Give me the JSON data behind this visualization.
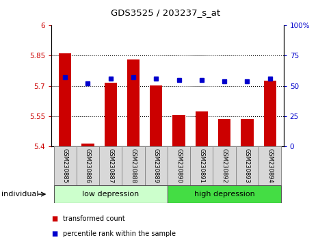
{
  "title": "GDS3525 / 203237_s_at",
  "categories": [
    "GSM230885",
    "GSM230886",
    "GSM230887",
    "GSM230888",
    "GSM230889",
    "GSM230890",
    "GSM230891",
    "GSM230892",
    "GSM230893",
    "GSM230894"
  ],
  "bar_values": [
    5.862,
    5.415,
    5.715,
    5.83,
    5.703,
    5.558,
    5.572,
    5.535,
    5.535,
    5.725
  ],
  "dot_values": [
    57,
    52,
    56,
    57,
    56,
    55,
    55,
    54,
    54,
    56
  ],
  "ylim_left": [
    5.4,
    6.0
  ],
  "ylim_right": [
    0,
    100
  ],
  "yticks_left": [
    5.4,
    5.55,
    5.7,
    5.85,
    6.0
  ],
  "ytick_labels_left": [
    "5.4",
    "5.55",
    "5.7",
    "5.85",
    "6"
  ],
  "yticks_right": [
    0,
    25,
    50,
    75,
    100
  ],
  "ytick_labels_right": [
    "0",
    "25",
    "50",
    "75",
    "100%"
  ],
  "bar_color": "#cc0000",
  "dot_color": "#0000cc",
  "bar_bottom": 5.4,
  "group_labels": [
    "low depression",
    "high depression"
  ],
  "low_color": "#ccffcc",
  "high_color": "#44dd44",
  "legend_items": [
    "transformed count",
    "percentile rank within the sample"
  ],
  "legend_colors": [
    "#cc0000",
    "#0000cc"
  ],
  "individual_label": "individual",
  "label_box_color": "#d8d8d8",
  "bg_color": "#ffffff"
}
